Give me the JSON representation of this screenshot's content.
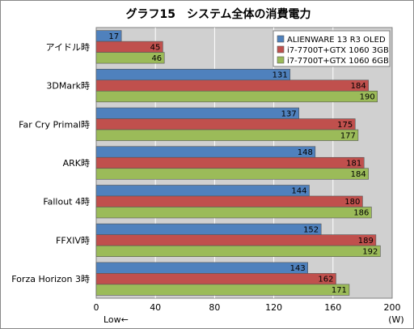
{
  "chart_data": {
    "type": "bar",
    "orientation": "horizontal",
    "title": "グラフ15　システム全体の消費電力",
    "categories": [
      "アイドル時",
      "3DMark時",
      "Far Cry Primal時",
      "ARK時",
      "Fallout 4時",
      "FFXIV時",
      "Forza Horizon 3時"
    ],
    "series": [
      {
        "name": "ALIENWARE 13 R3 OLED",
        "color": "#4f81bd",
        "values": [
          17,
          131,
          137,
          148,
          144,
          152,
          143
        ]
      },
      {
        "name": "i7-7700T+GTX 1060 3GB",
        "color": "#c0504d",
        "values": [
          45,
          184,
          175,
          181,
          180,
          189,
          162
        ]
      },
      {
        "name": "i7-7700T+GTX 1060 6GB",
        "color": "#9bbb59",
        "values": [
          46,
          190,
          177,
          184,
          186,
          192,
          171
        ]
      }
    ],
    "xlim": [
      0,
      200
    ],
    "xticks": [
      0,
      40,
      80,
      120,
      160,
      200
    ],
    "xunit": "(W)",
    "xnote": "Low←",
    "grid": true,
    "legend": "top-right"
  }
}
